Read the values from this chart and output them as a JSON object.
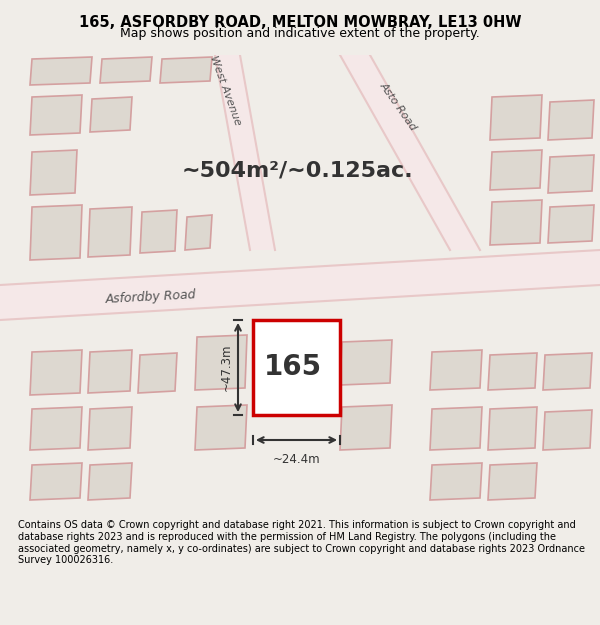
{
  "title_line1": "165, ASFORDBY ROAD, MELTON MOWBRAY, LE13 0HW",
  "title_line2": "Map shows position and indicative extent of the property.",
  "area_text": "~504m²/~0.125ac.",
  "label_165": "165",
  "dim_width": "~24.4m",
  "dim_height": "~47.3m",
  "footer": "Contains OS data © Crown copyright and database right 2021. This information is subject to Crown copyright and database rights 2023 and is reproduced with the permission of HM Land Registry. The polygons (including the associated geometry, namely x, y co-ordinates) are subject to Crown copyright and database rights 2023 Ordnance Survey 100026316.",
  "bg_color": "#f0ede8",
  "map_bg": "#f5f0eb",
  "road_color": "#e8c8c8",
  "road_fill": "#f5e8e8",
  "highlight_color": "#cc0000",
  "highlight_fill": "#ffffff",
  "street_label_asfordby": "Asfordby Road",
  "street_label_west": "West Avenue",
  "street_label_asto": "Asto Road"
}
